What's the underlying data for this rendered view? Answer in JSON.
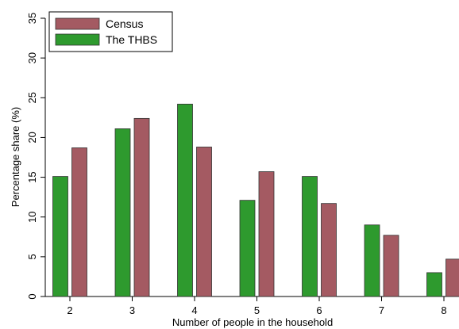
{
  "chart_data": {
    "type": "bar",
    "title": "",
    "xlabel": "Number of people in the household",
    "ylabel": "Percentage share (%)",
    "categories": [
      "2",
      "3",
      "4",
      "5",
      "6",
      "7",
      "8"
    ],
    "ylim": [
      0,
      35
    ],
    "yticks": [
      0,
      5,
      10,
      15,
      20,
      25,
      30,
      35
    ],
    "grid": false,
    "legend": "top-left",
    "series": [
      {
        "name": "The THBS",
        "color": "#2e9a2e",
        "values": [
          15.1,
          21.1,
          24.2,
          12.1,
          15.1,
          9.0,
          3.0
        ]
      },
      {
        "name": "Census",
        "color": "#a45a62",
        "values": [
          18.7,
          22.4,
          18.8,
          15.7,
          11.7,
          7.7,
          4.7
        ]
      }
    ],
    "legend_order": [
      1,
      0
    ]
  }
}
